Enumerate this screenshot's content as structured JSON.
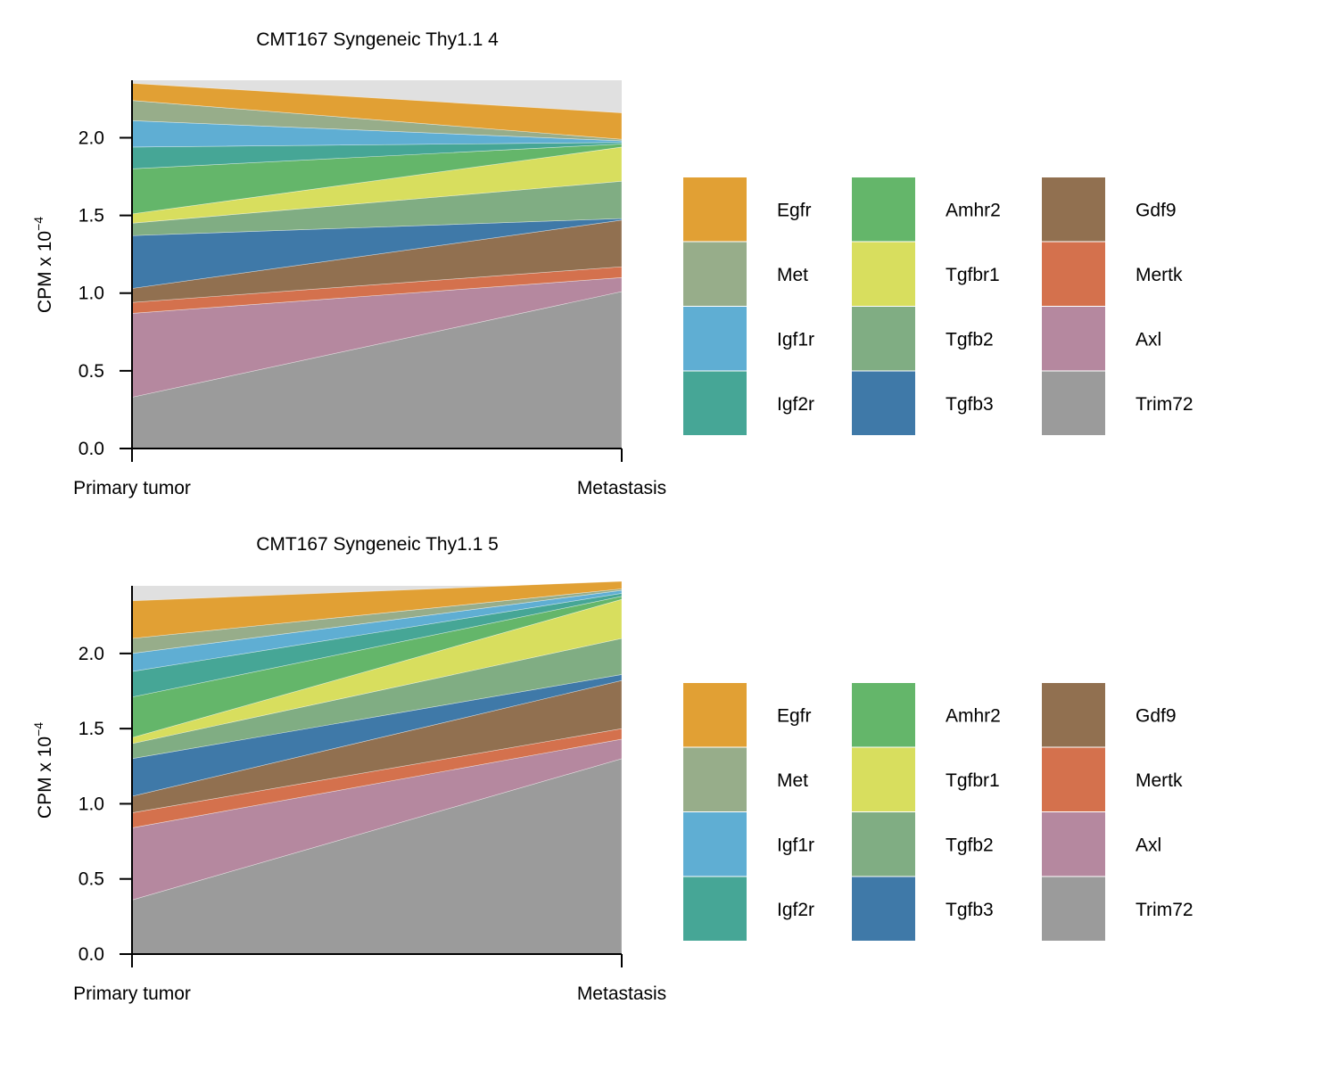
{
  "legend_labels": [
    "Egfr",
    "Met",
    "Igf1r",
    "Igf2r",
    "Amhr2",
    "Tgfbr1",
    "Tgfb2",
    "Tgfb3",
    "Gdf9",
    "Mertk",
    "Axl",
    "Trim72"
  ],
  "colors": {
    "Trim72": "#9b9b9b",
    "Axl": "#b5889f",
    "Mertk": "#d4714d",
    "Gdf9": "#917050",
    "Tgfb3": "#3f79a8",
    "Tgfb2": "#80ad83",
    "Tgfbr1": "#d8de5e",
    "Amhr2": "#64b66a",
    "Igf2r": "#46a696",
    "Igf1r": "#5faed3",
    "Met": "#97ad8a",
    "Egfr": "#e1a034",
    "background": "#e0e0e0"
  },
  "chart_data": [
    {
      "type": "area",
      "title": "CMT167 Syngeneic Thy1.1 4",
      "xlabel": "",
      "ylabel": "CPM x 10",
      "ylabel_exponent": "−4",
      "categories": [
        "Primary tumor",
        "Metastasis"
      ],
      "ylim": [
        0,
        2.37
      ],
      "yticks": [
        "0.0",
        "0.5",
        "1.0",
        "1.5",
        "2.0"
      ],
      "series": [
        {
          "name": "Trim72",
          "values": [
            0.33,
            1.01
          ]
        },
        {
          "name": "Axl",
          "values": [
            0.54,
            0.09
          ]
        },
        {
          "name": "Mertk",
          "values": [
            0.07,
            0.07
          ]
        },
        {
          "name": "Gdf9",
          "values": [
            0.09,
            0.3
          ]
        },
        {
          "name": "Tgfb3",
          "values": [
            0.34,
            0.01
          ]
        },
        {
          "name": "Tgfb2",
          "values": [
            0.08,
            0.24
          ]
        },
        {
          "name": "Tgfbr1",
          "values": [
            0.06,
            0.22
          ]
        },
        {
          "name": "Amhr2",
          "values": [
            0.29,
            0.02
          ]
        },
        {
          "name": "Igf2r",
          "values": [
            0.14,
            0.01
          ]
        },
        {
          "name": "Igf1r",
          "values": [
            0.17,
            0.01
          ]
        },
        {
          "name": "Met",
          "values": [
            0.13,
            0.01
          ]
        },
        {
          "name": "Egfr",
          "values": [
            0.11,
            0.17
          ]
        }
      ]
    },
    {
      "type": "area",
      "title": "CMT167 Syngeneic Thy1.1 5",
      "xlabel": "",
      "ylabel": "CPM x 10",
      "ylabel_exponent": "−4",
      "categories": [
        "Primary tumor",
        "Metastasis"
      ],
      "ylim": [
        0,
        2.45
      ],
      "yticks": [
        "0.0",
        "0.5",
        "1.0",
        "1.5",
        "2.0"
      ],
      "series": [
        {
          "name": "Trim72",
          "values": [
            0.36,
            1.3
          ]
        },
        {
          "name": "Axl",
          "values": [
            0.48,
            0.13
          ]
        },
        {
          "name": "Mertk",
          "values": [
            0.1,
            0.07
          ]
        },
        {
          "name": "Gdf9",
          "values": [
            0.11,
            0.32
          ]
        },
        {
          "name": "Tgfb3",
          "values": [
            0.25,
            0.04
          ]
        },
        {
          "name": "Tgfb2",
          "values": [
            0.1,
            0.24
          ]
        },
        {
          "name": "Tgfbr1",
          "values": [
            0.04,
            0.26
          ]
        },
        {
          "name": "Amhr2",
          "values": [
            0.27,
            0.02
          ]
        },
        {
          "name": "Igf2r",
          "values": [
            0.17,
            0.02
          ]
        },
        {
          "name": "Igf1r",
          "values": [
            0.12,
            0.02
          ]
        },
        {
          "name": "Met",
          "values": [
            0.1,
            0.01
          ]
        },
        {
          "name": "Egfr",
          "values": [
            0.25,
            0.05
          ]
        }
      ]
    }
  ]
}
